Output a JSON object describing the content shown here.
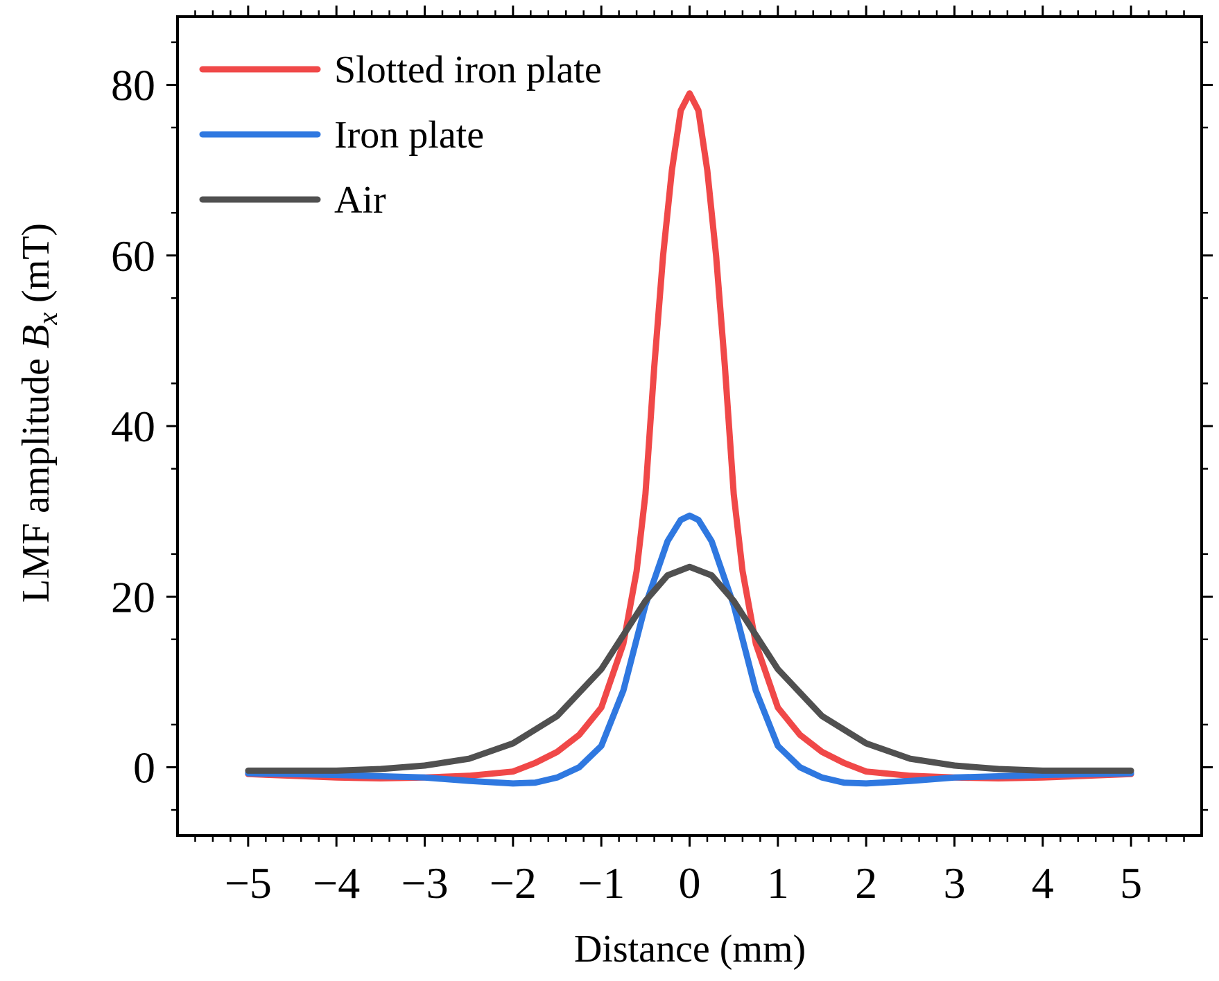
{
  "chart_data": {
    "type": "line",
    "title": "",
    "xlabel": "Distance (mm)",
    "ylabel": {
      "prefix": "LMF amplitude ",
      "symbol": "B",
      "subscript": "x",
      "unit": " (mT)"
    },
    "xlim": [
      -5.8,
      5.8
    ],
    "ylim": [
      -8,
      88
    ],
    "xticks": [
      -5,
      -4,
      -3,
      -2,
      -1,
      0,
      1,
      2,
      3,
      4,
      5
    ],
    "xtick_labels": [
      "−5",
      "−4",
      "−3",
      "−2",
      "−1",
      "0",
      "1",
      "2",
      "3",
      "4",
      "5"
    ],
    "yticks": [
      0,
      20,
      40,
      60,
      80
    ],
    "ytick_labels": [
      "0",
      "20",
      "40",
      "60",
      "80"
    ],
    "grid": false,
    "legend_position": "top-left",
    "series": [
      {
        "name": "Slotted iron plate",
        "color": "#f04848",
        "x": [
          -5,
          -4.5,
          -4,
          -3.5,
          -3,
          -2.5,
          -2,
          -1.75,
          -1.5,
          -1.25,
          -1,
          -0.75,
          -0.6,
          -0.5,
          -0.4,
          -0.3,
          -0.2,
          -0.1,
          0,
          0.1,
          0.2,
          0.3,
          0.4,
          0.5,
          0.6,
          0.75,
          1,
          1.25,
          1.5,
          1.75,
          2,
          2.5,
          3,
          3.5,
          4,
          4.5,
          5
        ],
        "y": [
          -0.8,
          -1.0,
          -1.2,
          -1.3,
          -1.2,
          -1.0,
          -0.5,
          0.5,
          1.8,
          3.8,
          7.0,
          14.5,
          23.0,
          32.0,
          47.0,
          60.0,
          70.0,
          77.0,
          79.0,
          77.0,
          70.0,
          60.0,
          47.0,
          32.0,
          23.0,
          14.5,
          7.0,
          3.8,
          1.8,
          0.5,
          -0.5,
          -1.0,
          -1.2,
          -1.3,
          -1.2,
          -1.0,
          -0.8
        ]
      },
      {
        "name": "Iron plate",
        "color": "#2f78e0",
        "x": [
          -5,
          -4,
          -3,
          -2.5,
          -2,
          -1.75,
          -1.5,
          -1.25,
          -1,
          -0.75,
          -0.5,
          -0.25,
          -0.1,
          0,
          0.1,
          0.25,
          0.5,
          0.75,
          1,
          1.25,
          1.5,
          1.75,
          2,
          2.5,
          3,
          4,
          5
        ],
        "y": [
          -0.7,
          -0.9,
          -1.2,
          -1.6,
          -1.9,
          -1.8,
          -1.2,
          0.0,
          2.5,
          9.0,
          19.0,
          26.5,
          29.0,
          29.5,
          29.0,
          26.5,
          19.0,
          9.0,
          2.5,
          0.0,
          -1.2,
          -1.8,
          -1.9,
          -1.6,
          -1.2,
          -0.9,
          -0.7
        ]
      },
      {
        "name": "Air",
        "color": "#505050",
        "x": [
          -5,
          -4,
          -3.5,
          -3,
          -2.5,
          -2,
          -1.5,
          -1,
          -0.75,
          -0.5,
          -0.25,
          0,
          0.25,
          0.5,
          0.75,
          1,
          1.5,
          2,
          2.5,
          3,
          3.5,
          4,
          5
        ],
        "y": [
          -0.4,
          -0.4,
          -0.2,
          0.2,
          1.0,
          2.8,
          6.0,
          11.5,
          15.5,
          19.5,
          22.5,
          23.5,
          22.5,
          19.5,
          15.5,
          11.5,
          6.0,
          2.8,
          1.0,
          0.2,
          -0.2,
          -0.4,
          -0.4
        ]
      }
    ]
  }
}
